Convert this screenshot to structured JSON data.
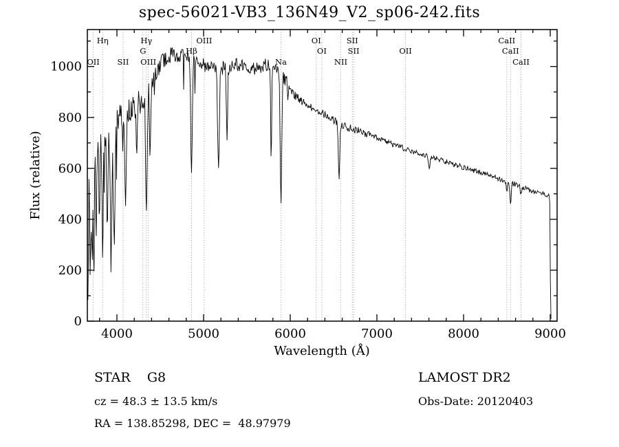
{
  "title": "spec-56021-VB3_136N49_V2_sp06-242.fits",
  "footer": {
    "class_label": "STAR    G8",
    "survey": "LAMOST DR2",
    "cz": "cz = 48.3 ± 13.5 km/s",
    "obs_date": "Obs-Date: 20120403",
    "coords": "RA = 138.85298, DEC =  48.97979"
  },
  "chart_data": {
    "type": "line",
    "title": "spec-56021-VB3_136N49_V2_sp06-242.fits",
    "xlabel": "Wavelength (Å)",
    "ylabel": "Flux (relative)",
    "xlim": [
      3659,
      9079
    ],
    "ylim": [
      0,
      1145
    ],
    "x_ticks": [
      4000,
      5000,
      6000,
      7000,
      8000,
      9000
    ],
    "y_ticks": [
      0,
      200,
      400,
      600,
      800,
      1000
    ],
    "grid": false,
    "legend": "none",
    "line_color": "#000000",
    "marker_line_color": "#808080",
    "continuum": [
      [
        3665,
        150
      ],
      [
        3678,
        430
      ],
      [
        3690,
        520
      ],
      [
        3702,
        480
      ],
      [
        3715,
        560
      ],
      [
        3728,
        610
      ],
      [
        3740,
        580
      ],
      [
        3752,
        640
      ],
      [
        3765,
        655
      ],
      [
        3780,
        670
      ],
      [
        3800,
        680
      ],
      [
        3830,
        695
      ],
      [
        3860,
        710
      ],
      [
        3890,
        725
      ],
      [
        3920,
        740
      ],
      [
        3950,
        758
      ],
      [
        3980,
        775
      ],
      [
        4010,
        795
      ],
      [
        4050,
        808
      ],
      [
        4100,
        818
      ],
      [
        4150,
        828
      ],
      [
        4200,
        842
      ],
      [
        4250,
        858
      ],
      [
        4300,
        872
      ],
      [
        4350,
        895
      ],
      [
        4400,
        935
      ],
      [
        4450,
        975
      ],
      [
        4500,
        1008
      ],
      [
        4550,
        1030
      ],
      [
        4600,
        1042
      ],
      [
        4650,
        1048
      ],
      [
        4700,
        1045
      ],
      [
        4750,
        1040
      ],
      [
        4800,
        1035
      ],
      [
        4850,
        1028
      ],
      [
        4900,
        1018
      ],
      [
        4950,
        1010
      ],
      [
        5000,
        1005
      ],
      [
        5060,
        998
      ],
      [
        5120,
        992
      ],
      [
        5180,
        990
      ],
      [
        5240,
        995
      ],
      [
        5300,
        1000
      ],
      [
        5360,
        1005
      ],
      [
        5420,
        1008
      ],
      [
        5480,
        1005
      ],
      [
        5540,
        998
      ],
      [
        5600,
        992
      ],
      [
        5660,
        998
      ],
      [
        5720,
        1005
      ],
      [
        5780,
        1010
      ],
      [
        5840,
        1000
      ],
      [
        5900,
        975
      ],
      [
        5950,
        945
      ],
      [
        6000,
        905
      ],
      [
        6060,
        885
      ],
      [
        6120,
        868
      ],
      [
        6180,
        852
      ],
      [
        6240,
        840
      ],
      [
        6300,
        832
      ],
      [
        6360,
        820
      ],
      [
        6420,
        808
      ],
      [
        6480,
        795
      ],
      [
        6540,
        782
      ],
      [
        6600,
        772
      ],
      [
        6660,
        762
      ],
      [
        6720,
        755
      ],
      [
        6780,
        748
      ],
      [
        6840,
        742
      ],
      [
        6880,
        728
      ],
      [
        6920,
        738
      ],
      [
        6980,
        722
      ],
      [
        7040,
        712
      ],
      [
        7100,
        704
      ],
      [
        7160,
        697
      ],
      [
        7220,
        690
      ],
      [
        7280,
        683
      ],
      [
        7340,
        676
      ],
      [
        7400,
        669
      ],
      [
        7460,
        662
      ],
      [
        7520,
        656
      ],
      [
        7580,
        650
      ],
      [
        7640,
        644
      ],
      [
        7700,
        638
      ],
      [
        7760,
        631
      ],
      [
        7820,
        624
      ],
      [
        7880,
        617
      ],
      [
        7940,
        610
      ],
      [
        8000,
        604
      ],
      [
        8060,
        598
      ],
      [
        8120,
        592
      ],
      [
        8180,
        586
      ],
      [
        8240,
        579
      ],
      [
        8300,
        572
      ],
      [
        8360,
        565
      ],
      [
        8420,
        558
      ],
      [
        8480,
        552
      ],
      [
        8540,
        545
      ],
      [
        8600,
        537
      ],
      [
        8660,
        529
      ],
      [
        8720,
        521
      ],
      [
        8780,
        513
      ],
      [
        8840,
        506
      ],
      [
        8900,
        500
      ],
      [
        8950,
        496
      ],
      [
        8990,
        492
      ],
      [
        8998,
        430
      ],
      [
        9002,
        120
      ],
      [
        9006,
        12
      ],
      [
        9012,
        6
      ]
    ],
    "absorption_lines": [
      {
        "wavelength": 3690,
        "flux": 90,
        "width": 4
      },
      {
        "wavelength": 3712,
        "flux": 140,
        "width": 4
      },
      {
        "wavelength": 3736,
        "flux": 160,
        "width": 5
      },
      {
        "wavelength": 3762,
        "flux": 230,
        "width": 4
      },
      {
        "wavelength": 3798,
        "flux": 380,
        "width": 6
      },
      {
        "wavelength": 3835,
        "flux": 300,
        "width": 7
      },
      {
        "wavelength": 3889,
        "flux": 340,
        "width": 7
      },
      {
        "wavelength": 3933,
        "flux": 195,
        "width": 8
      },
      {
        "wavelength": 3969,
        "flux": 270,
        "width": 8
      },
      {
        "wavelength": 4101,
        "flux": 480,
        "width": 9
      },
      {
        "wavelength": 4227,
        "flux": 660,
        "width": 6
      },
      {
        "wavelength": 4340,
        "flux": 450,
        "width": 9
      },
      {
        "wavelength": 4383,
        "flux": 640,
        "width": 6
      },
      {
        "wavelength": 4861,
        "flux": 565,
        "width": 9
      },
      {
        "wavelength": 5172,
        "flux": 590,
        "width": 10
      },
      {
        "wavelength": 5270,
        "flux": 700,
        "width": 7
      },
      {
        "wavelength": 5780,
        "flux": 620,
        "width": 5
      },
      {
        "wavelength": 5893,
        "flux": 445,
        "width": 9
      },
      {
        "wavelength": 6563,
        "flux": 545,
        "width": 8
      },
      {
        "wavelength": 7605,
        "flux": 600,
        "width": 8
      },
      {
        "wavelength": 8498,
        "flux": 515,
        "width": 7
      },
      {
        "wavelength": 8542,
        "flux": 452,
        "width": 8
      },
      {
        "wavelength": 8662,
        "flux": 500,
        "width": 7
      }
    ],
    "noise": [
      {
        "range": [
          3659,
          3790
        ],
        "amp": 150
      },
      {
        "range": [
          3790,
          3980
        ],
        "amp": 60
      },
      {
        "range": [
          3980,
          4400
        ],
        "amp": 48
      },
      {
        "range": [
          4400,
          4900
        ],
        "amp": 34
      },
      {
        "range": [
          4900,
          6000
        ],
        "amp": 27
      },
      {
        "range": [
          6000,
          6800
        ],
        "amp": 15
      },
      {
        "range": [
          6800,
          7600
        ],
        "amp": 11
      },
      {
        "range": [
          7600,
          9000
        ],
        "amp": 10
      },
      {
        "range": [
          9000,
          9012
        ],
        "amp": 3
      }
    ],
    "spectral_line_markers": [
      {
        "label": "OII",
        "wavelength": 3727,
        "row": 3
      },
      {
        "label": "Hη",
        "wavelength": 3835,
        "row": 1
      },
      {
        "label": "SII",
        "wavelength": 4072,
        "row": 3
      },
      {
        "label": "Hγ",
        "wavelength": 4340,
        "row": 1
      },
      {
        "label": "G",
        "wavelength": 4300,
        "row": 2
      },
      {
        "label": "OIII",
        "wavelength": 4363,
        "row": 3
      },
      {
        "label": "Hβ",
        "wavelength": 4861,
        "row": 2
      },
      {
        "label": "OIII",
        "wavelength": 5007,
        "row": 1
      },
      {
        "label": "Na",
        "wavelength": 5893,
        "row": 3
      },
      {
        "label": "OI",
        "wavelength": 6300,
        "row": 1
      },
      {
        "label": "OI",
        "wavelength": 6364,
        "row": 2
      },
      {
        "label": "NII",
        "wavelength": 6583,
        "row": 3
      },
      {
        "label": "SII",
        "wavelength": 6716,
        "row": 1
      },
      {
        "label": "SII",
        "wavelength": 6731,
        "row": 2
      },
      {
        "label": "OII",
        "wavelength": 7330,
        "row": 2
      },
      {
        "label": "CaII",
        "wavelength": 8498,
        "row": 1
      },
      {
        "label": "CaII",
        "wavelength": 8542,
        "row": 2
      },
      {
        "label": "CaII",
        "wavelength": 8662,
        "row": 3
      }
    ]
  }
}
